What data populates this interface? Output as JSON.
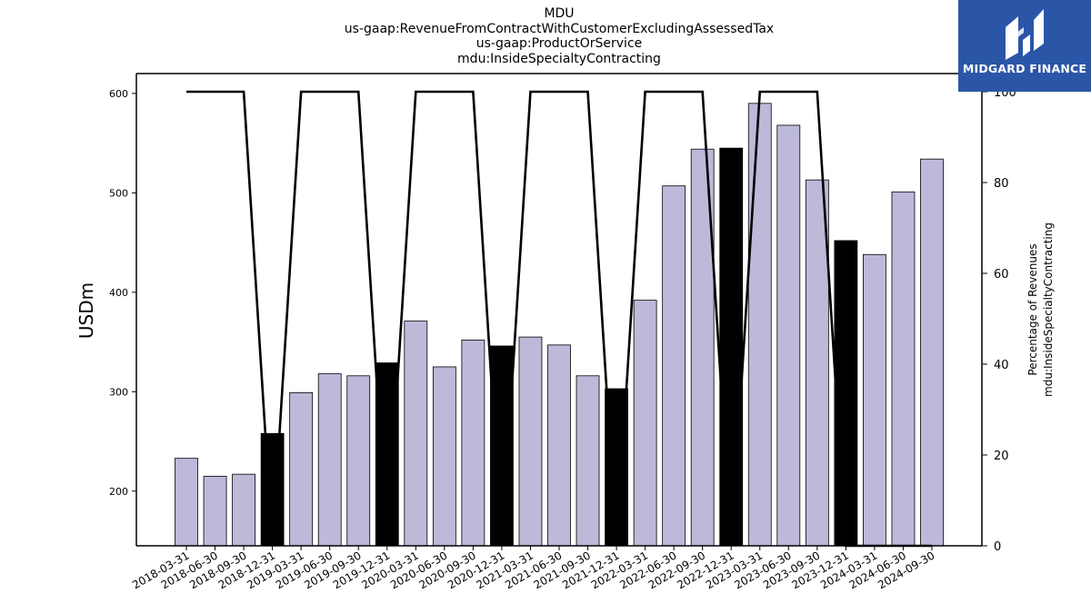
{
  "title_lines": [
    "MDU",
    "us-gaap:RevenueFromContractWithCustomerExcludingAssessedTax",
    "us-gaap:ProductOrService",
    "mdu:InsideSpecialtyContracting"
  ],
  "logo": {
    "text": "MIDGARD FINANCE",
    "bg_color": "#2b56a8"
  },
  "colors": {
    "bar_normal": "#bcb9d9",
    "bar_highlight": "#000000",
    "line": "#000000"
  },
  "chart_data": {
    "type": "bar",
    "title": "MDU us-gaap:RevenueFromContractWithCustomerExcludingAssessedTax us-gaap:ProductOrService mdu:InsideSpecialtyContracting",
    "ylabel": "USDm",
    "y2label_lines": [
      "Percentage of Revenues",
      "mdu:InsideSpecialtyContracting"
    ],
    "ylim": [
      145,
      620
    ],
    "y2lim": [
      0,
      104
    ],
    "yticks": [
      200,
      300,
      400,
      500,
      600
    ],
    "y2ticks": [
      0,
      20,
      40,
      60,
      80,
      100
    ],
    "categories": [
      "2018-03-31",
      "2018-06-30",
      "2018-09-30",
      "2018-12-31",
      "2019-03-31",
      "2019-06-30",
      "2019-09-30",
      "2019-12-31",
      "2020-03-31",
      "2020-06-30",
      "2020-09-30",
      "2020-12-31",
      "2021-03-31",
      "2021-06-30",
      "2021-09-30",
      "2021-12-31",
      "2022-03-31",
      "2022-06-30",
      "2022-09-30",
      "2022-12-31",
      "2023-03-31",
      "2023-06-30",
      "2023-09-30",
      "2023-12-31",
      "2024-03-31",
      "2024-06-30",
      "2024-09-30"
    ],
    "series": [
      {
        "type": "bar",
        "axis": "left",
        "values": [
          233,
          215,
          217,
          258,
          299,
          318,
          316,
          329,
          371,
          325,
          352,
          346,
          355,
          347,
          316,
          303,
          392,
          507,
          544,
          545,
          590,
          568,
          513,
          452,
          438,
          501,
          534
        ],
        "highlight": [
          false,
          false,
          false,
          true,
          false,
          false,
          false,
          true,
          false,
          false,
          false,
          true,
          false,
          false,
          false,
          true,
          false,
          false,
          false,
          true,
          false,
          false,
          false,
          true,
          false,
          false,
          false
        ]
      },
      {
        "type": "line",
        "axis": "right",
        "values": [
          100,
          100,
          100,
          0,
          100,
          100,
          100,
          0,
          100,
          100,
          100,
          0,
          100,
          100,
          100,
          0,
          100,
          100,
          100,
          0,
          100,
          100,
          100,
          0,
          0,
          0,
          0
        ]
      }
    ],
    "grid": false,
    "legend": "none"
  }
}
